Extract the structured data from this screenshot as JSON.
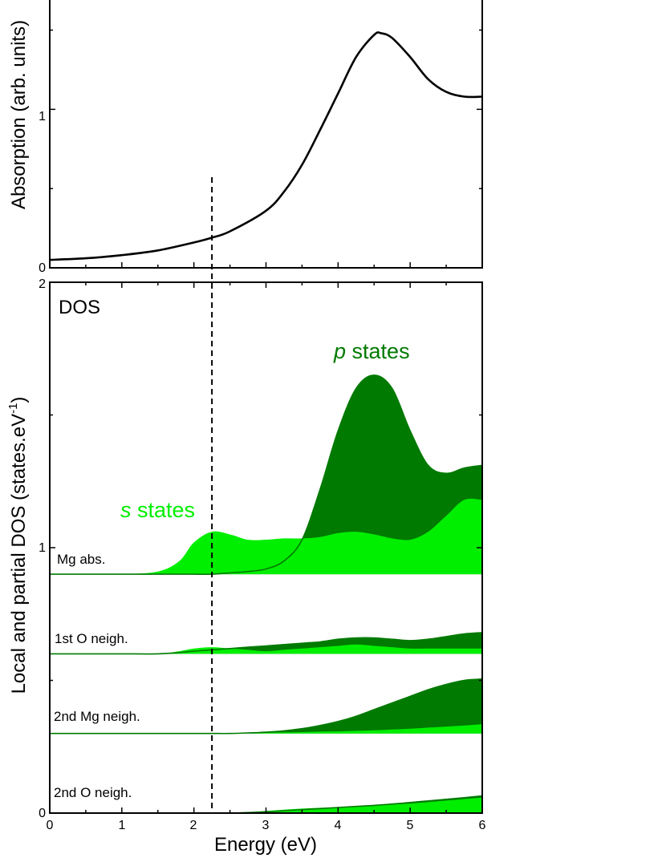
{
  "colors": {
    "s_states": "#00ee00",
    "p_states": "#007a00",
    "absorption_line": "#000000",
    "axis": "#000000"
  },
  "chart_data": [
    {
      "type": "line",
      "ylabel": "Absorption (arb. units)",
      "xlim": [
        0,
        6
      ],
      "ylim": [
        0,
        1.7
      ],
      "y_ticks": [
        "0",
        "1"
      ],
      "grid": false,
      "series": [
        {
          "x": [
            0,
            0.5,
            1,
            1.5,
            2,
            2.25,
            2.5,
            3,
            3.25,
            3.5,
            3.75,
            4,
            4.25,
            4.5,
            4.6,
            4.75,
            5,
            5.25,
            5.5,
            5.75,
            6
          ],
          "values": [
            0.05,
            0.06,
            0.08,
            0.11,
            0.16,
            0.19,
            0.23,
            0.36,
            0.48,
            0.65,
            0.87,
            1.1,
            1.33,
            1.47,
            1.48,
            1.45,
            1.33,
            1.19,
            1.11,
            1.08,
            1.08
          ]
        }
      ],
      "marker_x": 2.25
    },
    {
      "type": "area",
      "ylabel": "Local and partial DOS (states.eV",
      "ylabel_sup": "-1",
      "ylabel_close": ")",
      "xlabel": "Energy (eV)",
      "xlim": [
        0,
        6
      ],
      "ylim": [
        0,
        2
      ],
      "x_ticks": [
        "0",
        "1",
        "2",
        "3",
        "4",
        "5",
        "6"
      ],
      "y_ticks": [
        "0",
        "1",
        "2"
      ],
      "grid": false,
      "panel_label": "DOS",
      "annotations": [
        {
          "italic": "s",
          "text": " states",
          "color": "#00ee00"
        },
        {
          "italic": "p",
          "text": " states",
          "color": "#007a00"
        }
      ],
      "x": [
        0,
        0.5,
        1,
        1.5,
        1.8,
        2,
        2.25,
        2.5,
        2.75,
        3,
        3.25,
        3.5,
        3.75,
        4,
        4.25,
        4.5,
        4.75,
        5,
        5.25,
        5.5,
        5.75,
        6
      ],
      "curves": [
        {
          "name": "Mg abs.",
          "baseline": 0.9,
          "s_values": [
            0.9,
            0.9,
            0.9,
            0.91,
            0.95,
            1.02,
            1.06,
            1.05,
            1.03,
            1.03,
            1.035,
            1.035,
            1.04,
            1.055,
            1.06,
            1.05,
            1.035,
            1.03,
            1.06,
            1.12,
            1.18,
            1.18
          ],
          "p_values": [
            0.9,
            0.9,
            0.9,
            0.9,
            0.9,
            0.9,
            0.9,
            0.905,
            0.91,
            0.92,
            0.95,
            1.03,
            1.22,
            1.44,
            1.6,
            1.65,
            1.6,
            1.44,
            1.31,
            1.28,
            1.3,
            1.31
          ]
        },
        {
          "name": "1st O  neigh.",
          "baseline": 0.6,
          "s_values": [
            0.6,
            0.6,
            0.6,
            0.6,
            0.61,
            0.62,
            0.625,
            0.62,
            0.615,
            0.61,
            0.615,
            0.62,
            0.625,
            0.63,
            0.635,
            0.63,
            0.625,
            0.62,
            0.62,
            0.62,
            0.62,
            0.62
          ],
          "p_values": [
            0.6,
            0.6,
            0.6,
            0.6,
            0.605,
            0.61,
            0.615,
            0.62,
            0.625,
            0.63,
            0.635,
            0.64,
            0.645,
            0.655,
            0.66,
            0.66,
            0.655,
            0.65,
            0.655,
            0.665,
            0.675,
            0.68
          ]
        },
        {
          "name": "2nd Mg neigh.",
          "baseline": 0.3,
          "s_values": [
            0.3,
            0.3,
            0.3,
            0.3,
            0.3,
            0.3,
            0.3,
            0.3,
            0.3,
            0.302,
            0.304,
            0.305,
            0.307,
            0.308,
            0.31,
            0.312,
            0.315,
            0.318,
            0.322,
            0.326,
            0.33,
            0.335
          ],
          "p_values": [
            0.3,
            0.3,
            0.3,
            0.3,
            0.3,
            0.3,
            0.3,
            0.3,
            0.302,
            0.305,
            0.31,
            0.318,
            0.33,
            0.345,
            0.365,
            0.39,
            0.415,
            0.44,
            0.465,
            0.485,
            0.5,
            0.505
          ]
        },
        {
          "name": "2nd O neigh.",
          "baseline": 0.0,
          "s_values": [
            0,
            0,
            0,
            0,
            0,
            0,
            0,
            0,
            0.003,
            0.008,
            0.013,
            0.017,
            0.02,
            0.022,
            0.025,
            0.028,
            0.032,
            0.036,
            0.041,
            0.047,
            0.053,
            0.058
          ],
          "p_values": [
            0,
            0,
            0,
            0,
            0,
            0,
            0,
            0,
            0.002,
            0.005,
            0.009,
            0.013,
            0.017,
            0.021,
            0.025,
            0.029,
            0.034,
            0.04,
            0.046,
            0.052,
            0.058,
            0.065
          ]
        }
      ],
      "marker_x": 2.25
    }
  ]
}
